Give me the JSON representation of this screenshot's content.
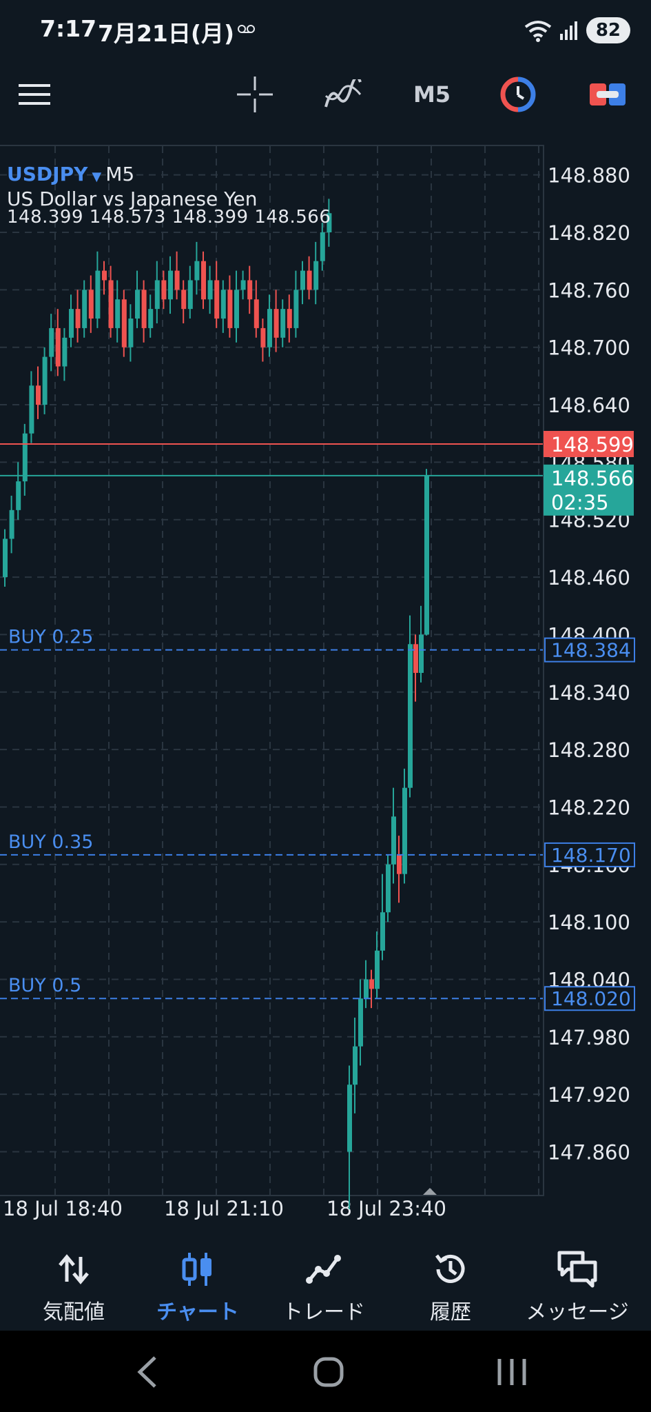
{
  "status_bar": {
    "time": "7:17",
    "date": "7月21日(月)",
    "battery": "82"
  },
  "toolbar": {
    "timeframe": "M5",
    "icons": [
      "menu-icon",
      "crosshair-icon",
      "indicators-icon",
      "timeframe",
      "one-click-trading-icon",
      "trade-ticket-icon"
    ]
  },
  "chart": {
    "symbol": "USDJPY",
    "timeframe": "M5",
    "description": "US Dollar vs Japanese Yen",
    "ohlc": "148.399 148.573 148.399 148.566",
    "colors": {
      "up": "#26a69a",
      "down": "#ef5350",
      "bid_line": "#26a69a",
      "ask_line": "#ef5350",
      "order_line": "#3d7fe6",
      "grid": "#2a3540"
    },
    "ask_label": "148.599",
    "bid_label": "148.566",
    "countdown": "02:35",
    "orders": [
      {
        "label": "BUY 0.25",
        "price": 148.384,
        "price_label": "148.384"
      },
      {
        "label": "BUY 0.35",
        "price": 148.17,
        "price_label": "148.170"
      },
      {
        "label": "BUY 0.5",
        "price": 148.02,
        "price_label": "148.020"
      }
    ]
  },
  "chart_data": {
    "type": "candlestick",
    "ylim": [
      147.815,
      148.91
    ],
    "y_ticks": [
      "148.880",
      "148.820",
      "148.760",
      "148.700",
      "148.640",
      "148.580",
      "148.520",
      "148.460",
      "148.400",
      "148.340",
      "148.280",
      "148.220",
      "148.160",
      "148.100",
      "148.040",
      "147.980",
      "147.920",
      "147.860"
    ],
    "x_ticks": [
      "18 Jul 18:40",
      "18 Jul 21:10",
      "18 Jul 23:40"
    ],
    "ask": 148.599,
    "bid": 148.566
  },
  "bottom_nav": {
    "items": [
      {
        "label": "気配値",
        "icon": "quotes-icon"
      },
      {
        "label": "チャート",
        "icon": "chart-icon",
        "active": true
      },
      {
        "label": "トレード",
        "icon": "trade-icon"
      },
      {
        "label": "履歴",
        "icon": "history-icon"
      },
      {
        "label": "メッセージ",
        "icon": "messages-icon"
      }
    ]
  }
}
